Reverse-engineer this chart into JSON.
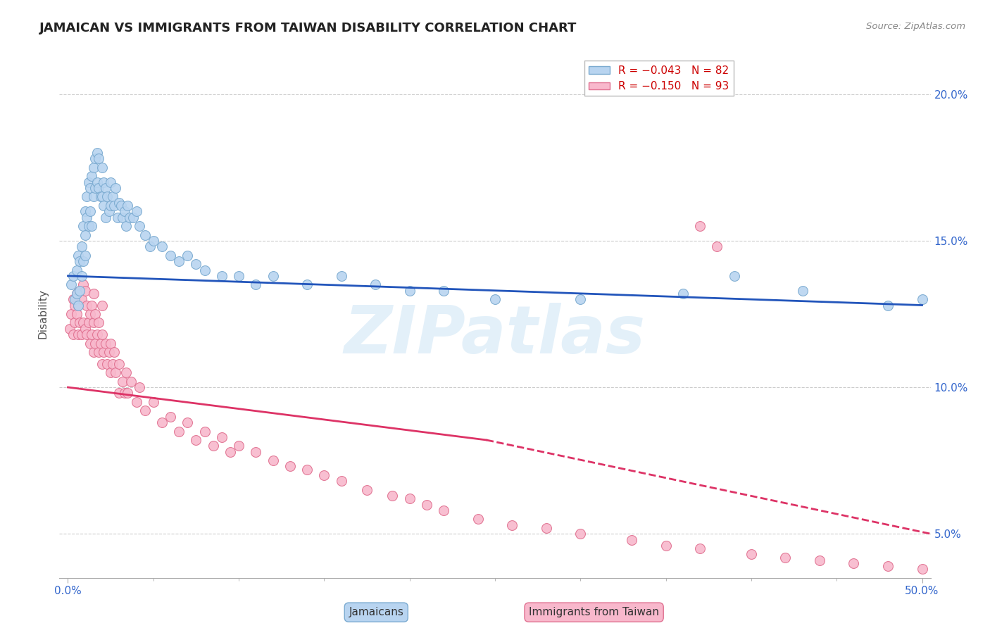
{
  "title": "JAMAICAN VS IMMIGRANTS FROM TAIWAN DISABILITY CORRELATION CHART",
  "source_text": "Source: ZipAtlas.com",
  "ylabel": "Disability",
  "xlim": [
    -0.005,
    0.505
  ],
  "ylim": [
    0.035,
    0.215
  ],
  "xticks_minor": [
    0.05,
    0.1,
    0.15,
    0.2,
    0.25,
    0.3,
    0.35,
    0.4,
    0.45
  ],
  "xticks_major": [
    0.0,
    0.5
  ],
  "xticklabels_major": [
    "0.0%",
    "50.0%"
  ],
  "yticks": [
    0.05,
    0.1,
    0.15,
    0.2
  ],
  "yticklabels": [
    "5.0%",
    "10.0%",
    "15.0%",
    "20.0%"
  ],
  "legend_r1": "R = −0.043",
  "legend_n1": "N = 82",
  "legend_r2": "R = −0.150",
  "legend_n2": "N = 93",
  "watermark": "ZIPatlas",
  "series1_color": "#b8d4f0",
  "series1_edge": "#7aaad0",
  "series2_color": "#f8b8cc",
  "series2_edge": "#e07090",
  "trendline1_color": "#2255bb",
  "trendline2_color": "#dd3366",
  "background_color": "#ffffff",
  "grid_color": "#cccccc",
  "jamaicans_x": [
    0.002,
    0.003,
    0.004,
    0.005,
    0.005,
    0.006,
    0.006,
    0.007,
    0.007,
    0.008,
    0.008,
    0.009,
    0.009,
    0.01,
    0.01,
    0.01,
    0.011,
    0.011,
    0.012,
    0.012,
    0.013,
    0.013,
    0.014,
    0.014,
    0.015,
    0.015,
    0.016,
    0.016,
    0.017,
    0.017,
    0.018,
    0.018,
    0.019,
    0.02,
    0.02,
    0.021,
    0.021,
    0.022,
    0.022,
    0.023,
    0.024,
    0.025,
    0.025,
    0.026,
    0.027,
    0.028,
    0.029,
    0.03,
    0.031,
    0.032,
    0.033,
    0.034,
    0.035,
    0.036,
    0.038,
    0.04,
    0.042,
    0.045,
    0.048,
    0.05,
    0.055,
    0.06,
    0.065,
    0.07,
    0.075,
    0.08,
    0.09,
    0.1,
    0.11,
    0.12,
    0.14,
    0.16,
    0.18,
    0.2,
    0.22,
    0.25,
    0.3,
    0.36,
    0.43,
    0.48,
    0.5,
    0.39
  ],
  "jamaicans_y": [
    0.135,
    0.138,
    0.13,
    0.14,
    0.132,
    0.145,
    0.128,
    0.143,
    0.133,
    0.148,
    0.138,
    0.155,
    0.143,
    0.16,
    0.152,
    0.145,
    0.165,
    0.158,
    0.17,
    0.155,
    0.168,
    0.16,
    0.172,
    0.155,
    0.175,
    0.165,
    0.178,
    0.168,
    0.18,
    0.17,
    0.178,
    0.168,
    0.165,
    0.175,
    0.165,
    0.17,
    0.162,
    0.168,
    0.158,
    0.165,
    0.16,
    0.17,
    0.162,
    0.165,
    0.162,
    0.168,
    0.158,
    0.163,
    0.162,
    0.158,
    0.16,
    0.155,
    0.162,
    0.158,
    0.158,
    0.16,
    0.155,
    0.152,
    0.148,
    0.15,
    0.148,
    0.145,
    0.143,
    0.145,
    0.142,
    0.14,
    0.138,
    0.138,
    0.135,
    0.138,
    0.135,
    0.138,
    0.135,
    0.133,
    0.133,
    0.13,
    0.13,
    0.132,
    0.133,
    0.128,
    0.13,
    0.138
  ],
  "taiwan_x": [
    0.001,
    0.002,
    0.003,
    0.003,
    0.004,
    0.004,
    0.005,
    0.005,
    0.006,
    0.006,
    0.007,
    0.007,
    0.008,
    0.008,
    0.009,
    0.009,
    0.01,
    0.01,
    0.011,
    0.011,
    0.012,
    0.013,
    0.013,
    0.014,
    0.014,
    0.015,
    0.015,
    0.015,
    0.016,
    0.016,
    0.017,
    0.018,
    0.018,
    0.019,
    0.02,
    0.02,
    0.02,
    0.021,
    0.022,
    0.023,
    0.024,
    0.025,
    0.025,
    0.026,
    0.027,
    0.028,
    0.03,
    0.03,
    0.032,
    0.033,
    0.034,
    0.035,
    0.037,
    0.04,
    0.042,
    0.045,
    0.05,
    0.055,
    0.06,
    0.065,
    0.07,
    0.075,
    0.08,
    0.085,
    0.09,
    0.095,
    0.1,
    0.11,
    0.12,
    0.13,
    0.14,
    0.15,
    0.16,
    0.175,
    0.19,
    0.2,
    0.21,
    0.22,
    0.24,
    0.26,
    0.28,
    0.3,
    0.33,
    0.35,
    0.37,
    0.4,
    0.42,
    0.44,
    0.46,
    0.48,
    0.5,
    0.37,
    0.38
  ],
  "taiwan_y": [
    0.12,
    0.125,
    0.118,
    0.13,
    0.122,
    0.128,
    0.125,
    0.132,
    0.118,
    0.128,
    0.122,
    0.133,
    0.118,
    0.13,
    0.122,
    0.135,
    0.12,
    0.133,
    0.118,
    0.128,
    0.122,
    0.115,
    0.125,
    0.118,
    0.128,
    0.112,
    0.122,
    0.132,
    0.115,
    0.125,
    0.118,
    0.112,
    0.122,
    0.115,
    0.108,
    0.118,
    0.128,
    0.112,
    0.115,
    0.108,
    0.112,
    0.105,
    0.115,
    0.108,
    0.112,
    0.105,
    0.098,
    0.108,
    0.102,
    0.098,
    0.105,
    0.098,
    0.102,
    0.095,
    0.1,
    0.092,
    0.095,
    0.088,
    0.09,
    0.085,
    0.088,
    0.082,
    0.085,
    0.08,
    0.083,
    0.078,
    0.08,
    0.078,
    0.075,
    0.073,
    0.072,
    0.07,
    0.068,
    0.065,
    0.063,
    0.062,
    0.06,
    0.058,
    0.055,
    0.053,
    0.052,
    0.05,
    0.048,
    0.046,
    0.045,
    0.043,
    0.042,
    0.041,
    0.04,
    0.039,
    0.038,
    0.155,
    0.148
  ],
  "trendline1_x0": 0.0,
  "trendline1_x1": 0.5,
  "trendline1_y0": 0.138,
  "trendline1_y1": 0.128,
  "trendline2_solid_x0": 0.0,
  "trendline2_solid_x1": 0.245,
  "trendline2_solid_y0": 0.1,
  "trendline2_solid_y1": 0.082,
  "trendline2_dash_x0": 0.245,
  "trendline2_dash_x1": 0.505,
  "trendline2_dash_y0": 0.082,
  "trendline2_dash_y1": 0.05
}
